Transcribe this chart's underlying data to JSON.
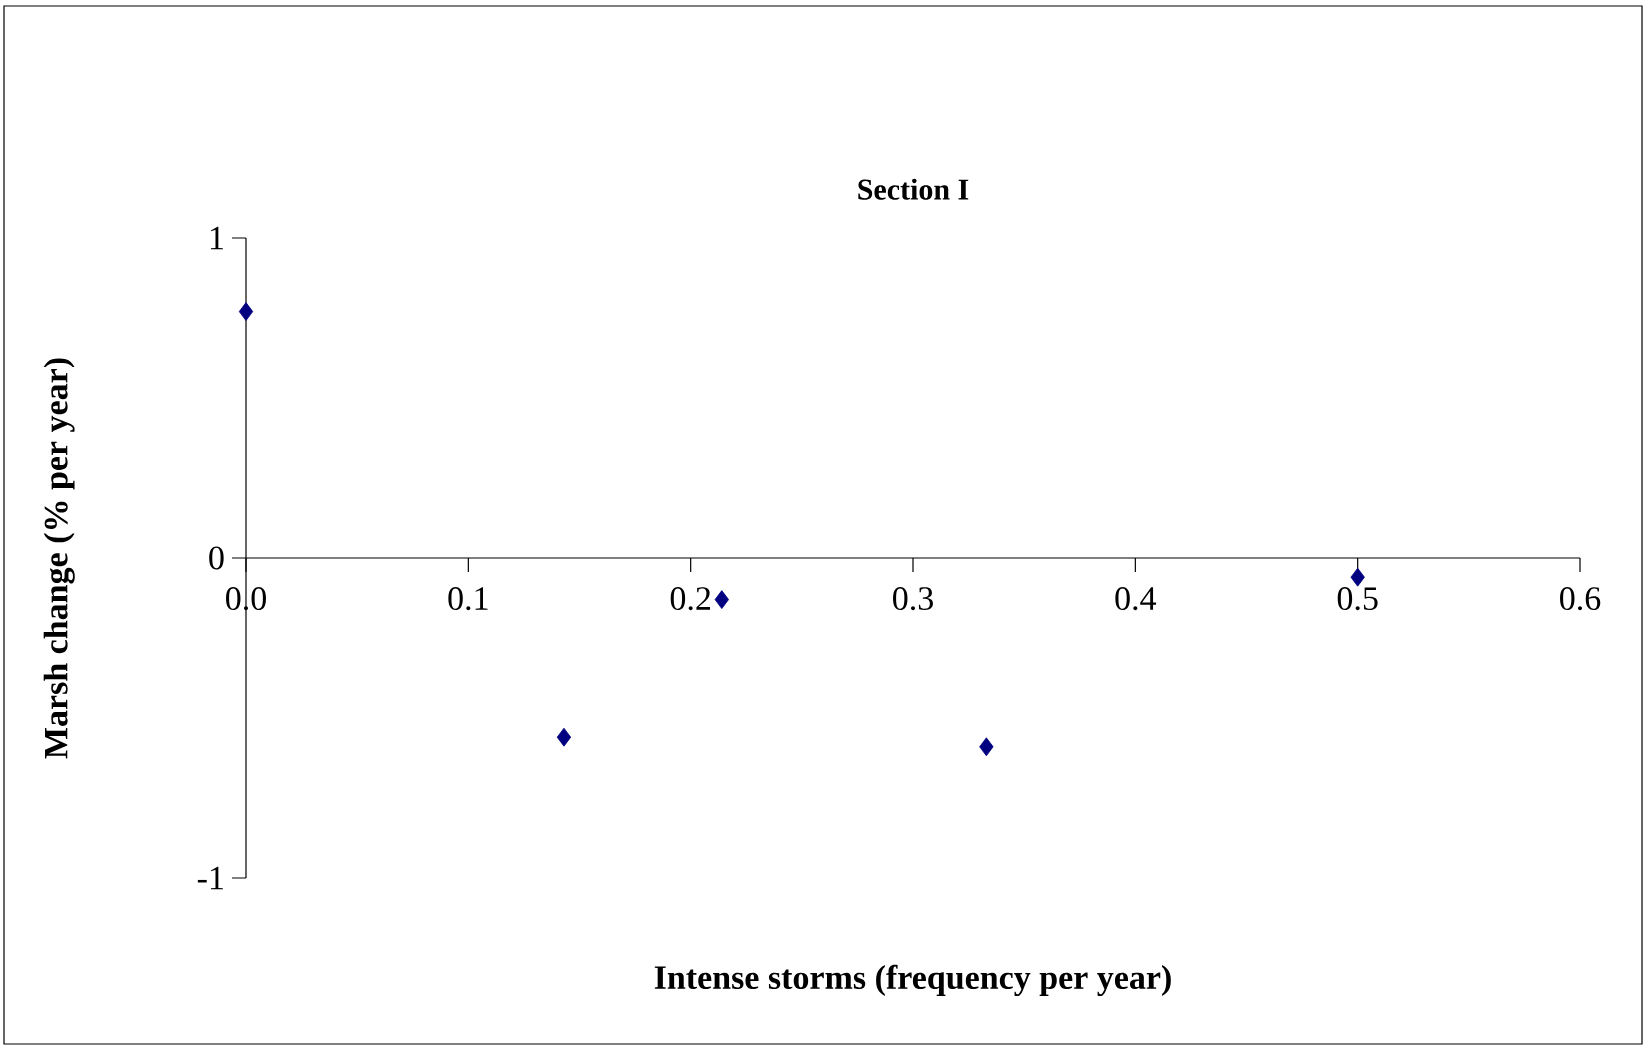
{
  "chart_data": {
    "type": "scatter",
    "title": "Section I",
    "xlabel": "Intense storms (frequency per year)",
    "ylabel": "Marsh change (% per year)",
    "x": [
      0,
      0.143,
      0.214,
      0.333,
      0.5
    ],
    "series": [
      {
        "color": "#000080",
        "values": [
          0.77,
          -0.56,
          -0.13,
          -0.59,
          -0.06
        ]
      }
    ],
    "xlim": [
      0,
      0.6
    ],
    "ylim": [
      -1,
      1
    ],
    "xticks": [
      {
        "value": 0,
        "label": "0.0"
      },
      0.1,
      0.2,
      0.3,
      0.4,
      0.5,
      0.6
    ],
    "yticks": [
      -1,
      0,
      1
    ],
    "marker": "diamond",
    "grid": false
  }
}
